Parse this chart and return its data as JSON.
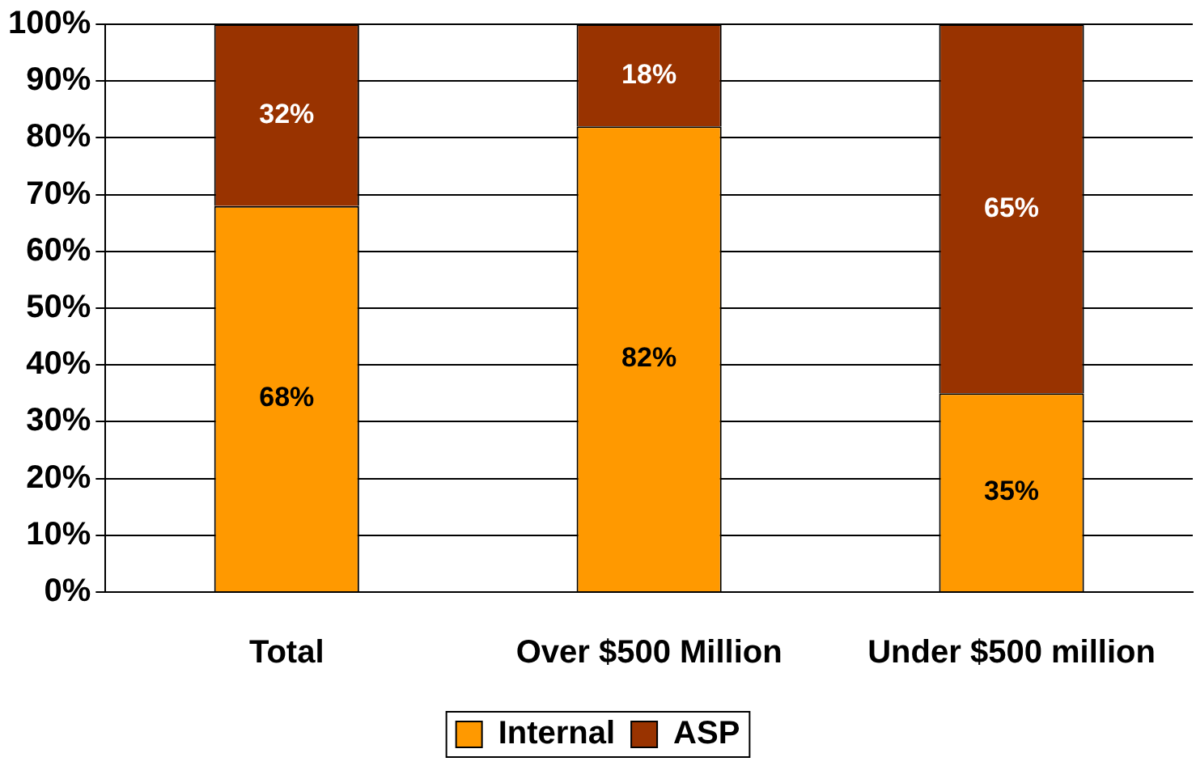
{
  "chart_data": {
    "type": "bar",
    "stacked": true,
    "categories": [
      "Total",
      "Over $500 Million",
      "Under $500 million"
    ],
    "series": [
      {
        "name": "Internal",
        "color": "#ff9900",
        "values": [
          68,
          82,
          35
        ],
        "value_labels": [
          "68%",
          "82%",
          "35%"
        ]
      },
      {
        "name": "ASP",
        "color": "#993300",
        "values": [
          32,
          18,
          65
        ],
        "value_labels": [
          "32%",
          "18%",
          "65%"
        ]
      }
    ],
    "ylim": [
      0,
      100
    ],
    "yticks": [
      {
        "value": 0,
        "label": "0%"
      },
      {
        "value": 10,
        "label": "10%"
      },
      {
        "value": 20,
        "label": "20%"
      },
      {
        "value": 30,
        "label": "30%"
      },
      {
        "value": 40,
        "label": "40%"
      },
      {
        "value": 50,
        "label": "50%"
      },
      {
        "value": 60,
        "label": "60%"
      },
      {
        "value": 70,
        "label": "70%"
      },
      {
        "value": 80,
        "label": "80%"
      },
      {
        "value": 90,
        "label": "90%"
      },
      {
        "value": 100,
        "label": "100%"
      }
    ],
    "grid": "y",
    "legend": "bottom"
  }
}
